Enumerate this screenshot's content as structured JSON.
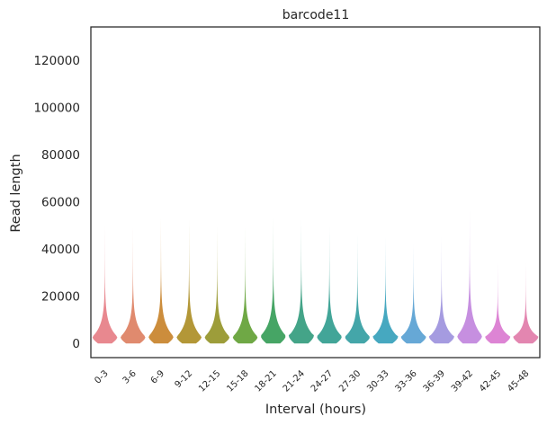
{
  "chart_data": {
    "type": "violin",
    "title": "barcode11",
    "xlabel": "Interval (hours)",
    "ylabel": "Read length",
    "categories": [
      "0-3",
      "3-6",
      "6-9",
      "9-12",
      "12-15",
      "15-18",
      "18-21",
      "21-24",
      "24-27",
      "27-30",
      "30-33",
      "33-36",
      "36-39",
      "39-42",
      "42-45",
      "45-48"
    ],
    "yticks": [
      0,
      20000,
      40000,
      60000,
      80000,
      100000,
      120000
    ],
    "ytick_labels": [
      "0",
      "20000",
      "40000",
      "60000",
      "80000",
      "100000",
      "120000"
    ],
    "ylim": [
      -6000,
      134000
    ],
    "grid": false,
    "legend": "none",
    "series": [
      {
        "category": "0-3",
        "min": 0,
        "median": 3000,
        "max": 50000,
        "color": "#e8888f"
      },
      {
        "category": "3-6",
        "min": 0,
        "median": 3000,
        "max": 49000,
        "color": "#e08a6e"
      },
      {
        "category": "6-9",
        "min": 0,
        "median": 3200,
        "max": 53000,
        "color": "#cc8d3c"
      },
      {
        "category": "9-12",
        "min": 0,
        "median": 3000,
        "max": 52000,
        "color": "#b39737"
      },
      {
        "category": "12-15",
        "min": 0,
        "median": 3000,
        "max": 49000,
        "color": "#9d9d3a"
      },
      {
        "category": "15-18",
        "min": 0,
        "median": 3000,
        "max": 49000,
        "color": "#6fa845"
      },
      {
        "category": "18-21",
        "min": 0,
        "median": 3500,
        "max": 53000,
        "color": "#46a565"
      },
      {
        "category": "21-24",
        "min": 0,
        "median": 3500,
        "max": 52000,
        "color": "#44a488"
      },
      {
        "category": "24-27",
        "min": 0,
        "median": 3200,
        "max": 49000,
        "color": "#42a598"
      },
      {
        "category": "27-30",
        "min": 0,
        "median": 3000,
        "max": 46000,
        "color": "#44a6a9"
      },
      {
        "category": "30-33",
        "min": 0,
        "median": 3000,
        "max": 45000,
        "color": "#46a8c0"
      },
      {
        "category": "33-36",
        "min": 0,
        "median": 3000,
        "max": 42000,
        "color": "#66a8d6"
      },
      {
        "category": "36-39",
        "min": 0,
        "median": 3000,
        "max": 45000,
        "color": "#a59be0"
      },
      {
        "category": "39-42",
        "min": 0,
        "median": 3500,
        "max": 57000,
        "color": "#c68fe0"
      },
      {
        "category": "42-45",
        "min": 0,
        "median": 3000,
        "max": 34000,
        "color": "#dd84d4"
      },
      {
        "category": "45-48",
        "min": 0,
        "median": 3000,
        "max": 34000,
        "color": "#e386b0"
      }
    ]
  }
}
